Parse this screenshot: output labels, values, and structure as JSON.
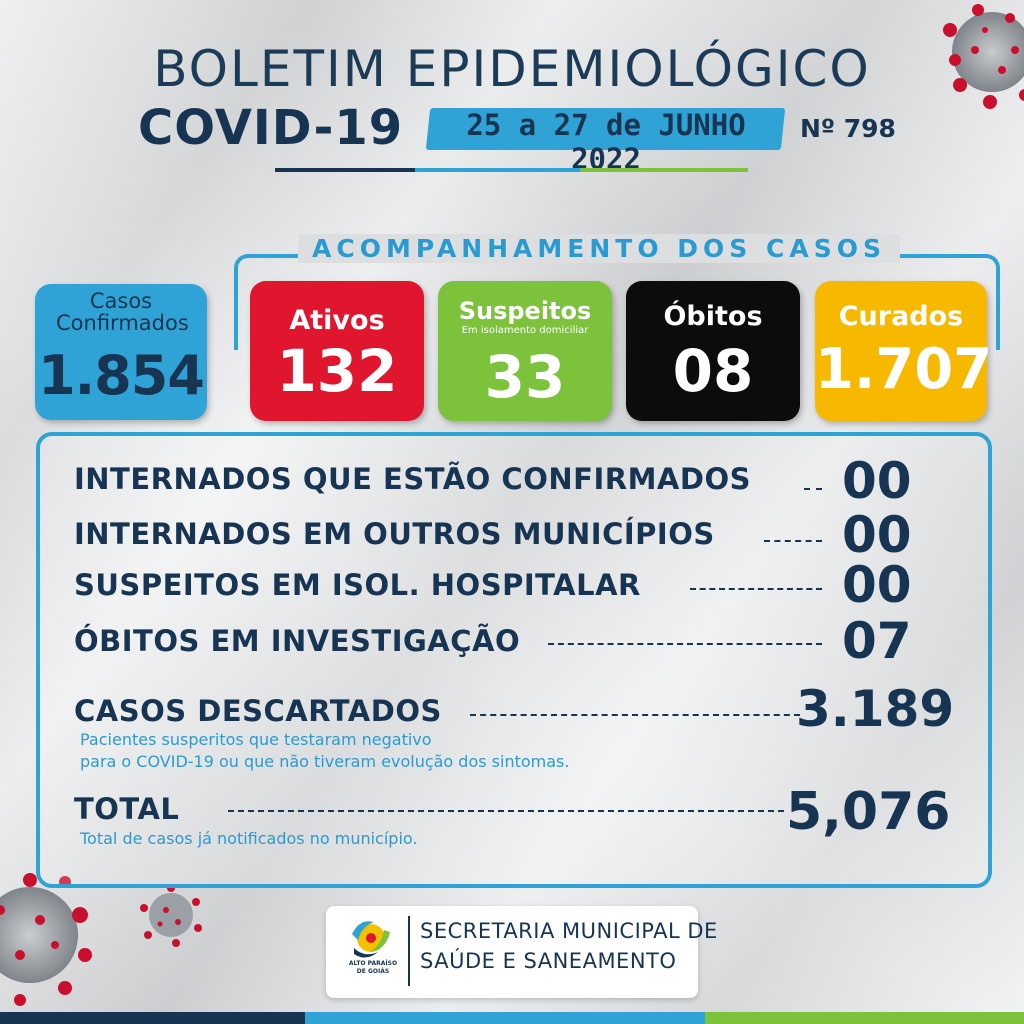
{
  "header": {
    "title": "BOLETIM EPIDEMIOLÓGICO",
    "subtitle": "COVID-19",
    "date": "25 a 27 de JUNHO 2022",
    "number": "Nº 798"
  },
  "section_title": "ACOMPANHAMENTO DOS CASOS",
  "cards": {
    "confirmados": {
      "label": "Casos Confirmados",
      "value": "1.854",
      "color": "#2fa3d6"
    },
    "ativos": {
      "label": "Ativos",
      "value": "132",
      "color": "#e0152e"
    },
    "suspeitos": {
      "label": "Suspeitos",
      "sublabel": "Em isolamento domiciliar",
      "value": "33",
      "color": "#7cc23a"
    },
    "obitos": {
      "label": "Óbitos",
      "value": "08",
      "color": "#0c0c0c"
    },
    "curados": {
      "label": "Curados",
      "value": "1.707",
      "color": "#f7b800"
    }
  },
  "stats": [
    {
      "label": "INTERNADOS QUE ESTÃO CONFIRMADOS",
      "value": "00"
    },
    {
      "label": "INTERNADOS EM OUTROS MUNICÍPIOS",
      "value": "00"
    },
    {
      "label": "SUSPEITOS EM ISOL. HOSPITALAR",
      "value": "00"
    },
    {
      "label": "ÓBITOS EM INVESTIGAÇÃO",
      "value": "07"
    }
  ],
  "descartados": {
    "label": "CASOS DESCARTADOS",
    "value": "3.189",
    "note_line1": "Pacientes susperitos que testaram negativo",
    "note_line2": "para o COVID-19 ou que não tiveram evolução dos sintomas."
  },
  "total": {
    "label": "TOTAL",
    "value": "5,076",
    "note": "Total de casos já notificados no município."
  },
  "footer": {
    "line1": "SECRETARIA MUNICIPAL DE",
    "line2": "SAÚDE E SANEAMENTO",
    "logo_line1": "ALTO PARAÍSO",
    "logo_line2": "DE GOIÁS"
  },
  "colors": {
    "navy": "#173552",
    "blue": "#2fa3d6",
    "green": "#7cc23a"
  }
}
